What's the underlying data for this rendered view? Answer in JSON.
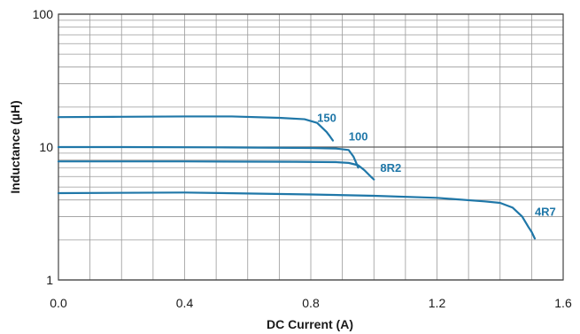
{
  "chart_data": {
    "type": "line",
    "xlabel": "DC Current (A)",
    "ylabel": "Inductance (µH)",
    "xlim": [
      0.0,
      1.6
    ],
    "ylim": [
      1,
      100
    ],
    "y_scale": "log",
    "grid": true,
    "x_ticks": [
      "0.0",
      "0.4",
      "0.8",
      "1.2",
      "1.6"
    ],
    "y_ticks": [
      "1",
      "10",
      "100"
    ],
    "line_color": "#1f77a8",
    "series": [
      {
        "name": "150",
        "points": [
          [
            0.0,
            16.8
          ],
          [
            0.2,
            16.9
          ],
          [
            0.4,
            17.0
          ],
          [
            0.55,
            17.0
          ],
          [
            0.7,
            16.6
          ],
          [
            0.78,
            16.2
          ],
          [
            0.82,
            15.2
          ],
          [
            0.85,
            13.0
          ],
          [
            0.86,
            12.1
          ],
          [
            0.87,
            11.2
          ]
        ]
      },
      {
        "name": "100",
        "points": [
          [
            0.0,
            10.0
          ],
          [
            0.2,
            10.0
          ],
          [
            0.5,
            9.95
          ],
          [
            0.8,
            9.85
          ],
          [
            0.88,
            9.75
          ],
          [
            0.92,
            9.5
          ],
          [
            0.935,
            8.5
          ],
          [
            0.945,
            7.5
          ],
          [
            0.95,
            7.0
          ]
        ]
      },
      {
        "name": "8R2",
        "points": [
          [
            0.0,
            7.8
          ],
          [
            0.4,
            7.8
          ],
          [
            0.75,
            7.75
          ],
          [
            0.88,
            7.7
          ],
          [
            0.92,
            7.6
          ],
          [
            0.95,
            7.3
          ],
          [
            0.97,
            6.7
          ],
          [
            0.99,
            6.0
          ],
          [
            1.0,
            5.7
          ]
        ]
      },
      {
        "name": "4R7",
        "points": [
          [
            0.0,
            4.5
          ],
          [
            0.4,
            4.55
          ],
          [
            0.8,
            4.4
          ],
          [
            1.0,
            4.3
          ],
          [
            1.2,
            4.15
          ],
          [
            1.35,
            3.9
          ],
          [
            1.4,
            3.8
          ],
          [
            1.44,
            3.5
          ],
          [
            1.47,
            3.0
          ],
          [
            1.49,
            2.5
          ],
          [
            1.5,
            2.3
          ],
          [
            1.51,
            2.05
          ]
        ]
      }
    ],
    "series_label_positions": [
      {
        "name": "150",
        "x": 0.82,
        "y": 15.5
      },
      {
        "name": "100",
        "x": 0.92,
        "y": 11.2
      },
      {
        "name": "8R2",
        "x": 1.02,
        "y": 6.5
      },
      {
        "name": "4R7",
        "x": 1.51,
        "y": 3.05
      }
    ]
  }
}
